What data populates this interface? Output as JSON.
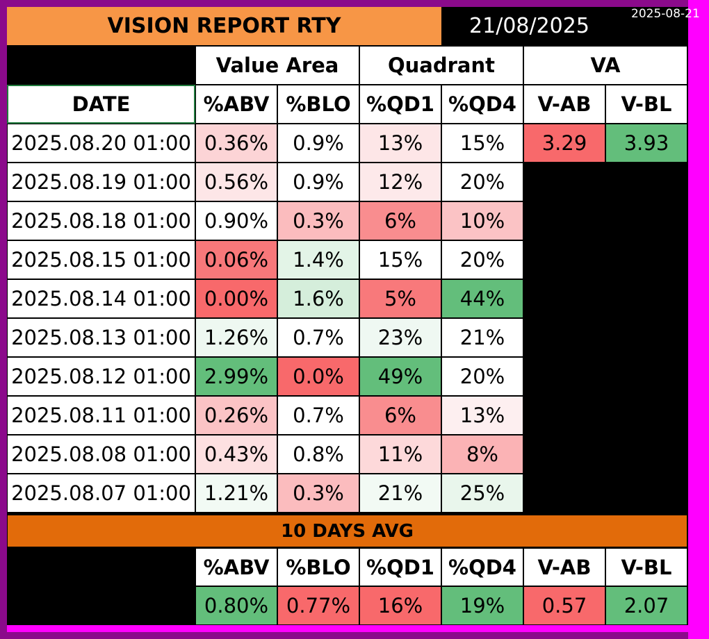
{
  "header": {
    "title": "VISION REPORT RTY",
    "report_date": "21/08/2025",
    "corner_stamp": "2025-08-21"
  },
  "groups": {
    "value_area": "Value Area",
    "quadrant": "Quadrant",
    "va": "VA"
  },
  "columns": [
    "DATE",
    "%ABV",
    "%BLO",
    "%QD1",
    "%QD4",
    "V-AB",
    "V-BL"
  ],
  "rows": [
    {
      "date": "2025.08.20 01:00",
      "abv": "0.36%",
      "blo": "0.9%",
      "qd1": "13%",
      "qd4": "15%",
      "vab": "3.29",
      "vbl": "3.93"
    },
    {
      "date": "2025.08.19 01:00",
      "abv": "0.56%",
      "blo": "0.9%",
      "qd1": "12%",
      "qd4": "20%"
    },
    {
      "date": "2025.08.18 01:00",
      "abv": "0.90%",
      "blo": "0.3%",
      "qd1": "6%",
      "qd4": "10%"
    },
    {
      "date": "2025.08.15 01:00",
      "abv": "0.06%",
      "blo": "1.4%",
      "qd1": "15%",
      "qd4": "20%"
    },
    {
      "date": "2025.08.14 01:00",
      "abv": "0.00%",
      "blo": "1.6%",
      "qd1": "5%",
      "qd4": "44%"
    },
    {
      "date": "2025.08.13 01:00",
      "abv": "1.26%",
      "blo": "0.7%",
      "qd1": "23%",
      "qd4": "21%"
    },
    {
      "date": "2025.08.12 01:00",
      "abv": "2.99%",
      "blo": "0.0%",
      "qd1": "49%",
      "qd4": "20%"
    },
    {
      "date": "2025.08.11 01:00",
      "abv": "0.26%",
      "blo": "0.7%",
      "qd1": "6%",
      "qd4": "13%"
    },
    {
      "date": "2025.08.08 01:00",
      "abv": "0.43%",
      "blo": "0.8%",
      "qd1": "11%",
      "qd4": "8%"
    },
    {
      "date": "2025.08.07 01:00",
      "abv": "1.21%",
      "blo": "0.3%",
      "qd1": "21%",
      "qd4": "25%"
    }
  ],
  "cell_colors": [
    {
      "abv": "#fcd4d6",
      "blo": "#ffffff",
      "qd1": "#fde6e7",
      "qd4": "#ffffff",
      "vab": "#f8696b",
      "vbl": "#63be7b"
    },
    {
      "abv": "#fde6e7",
      "blo": "#ffffff",
      "qd1": "#fde9ea",
      "qd4": "#ffffff"
    },
    {
      "abv": "#ffffff",
      "blo": "#fbbcbe",
      "qd1": "#f98d8f",
      "qd4": "#fbc3c5"
    },
    {
      "abv": "#f8787a",
      "blo": "#e3f4e7",
      "qd1": "#ffffff",
      "qd4": "#ffffff"
    },
    {
      "abv": "#f8696b",
      "blo": "#d5eedb",
      "qd1": "#f8797b",
      "qd4": "#63be7b"
    },
    {
      "abv": "#eef8f1",
      "blo": "#ffffff",
      "qd1": "#eff8f2",
      "qd4": "#ffffff"
    },
    {
      "abv": "#63be7b",
      "blo": "#f8696b",
      "qd1": "#63be7b",
      "qd4": "#ffffff"
    },
    {
      "abv": "#fbc3c5",
      "blo": "#ffffff",
      "qd1": "#f98d8f",
      "qd4": "#fdeff0"
    },
    {
      "abv": "#fde0e1",
      "blo": "#ffffff",
      "qd1": "#fdd9da",
      "qd4": "#fbb3b5"
    },
    {
      "abv": "#f2faf4",
      "blo": "#fbbcbe",
      "qd1": "#f2faf4",
      "qd4": "#e9f6ec"
    }
  ],
  "avg": {
    "label": "10 DAYS AVG",
    "columns": [
      "%ABV",
      "%BLO",
      "%QD1",
      "%QD4",
      "V-AB",
      "V-BL"
    ],
    "values": [
      "0.80%",
      "0.77%",
      "16%",
      "19%",
      "0.57",
      "2.07"
    ],
    "colors": [
      "#63be7b",
      "#f8696b",
      "#f8696b",
      "#63be7b",
      "#f8696b",
      "#63be7b"
    ]
  }
}
